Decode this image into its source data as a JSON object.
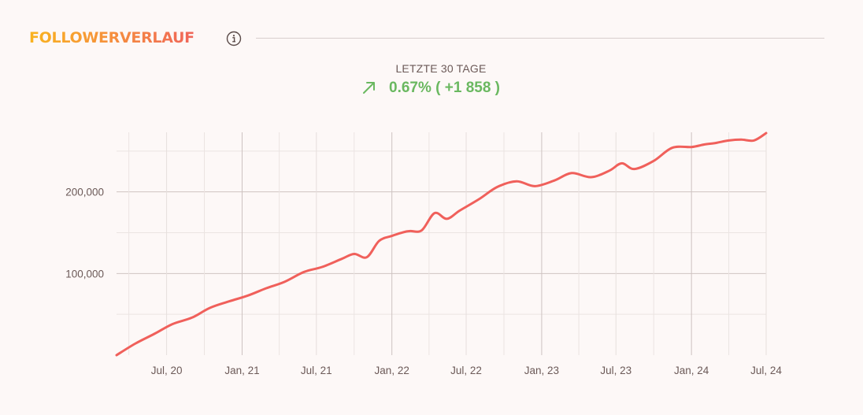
{
  "header": {
    "title": "FOLLOWERVERLAUF",
    "info_icon": "info-circle-icon"
  },
  "summary": {
    "label": "LETZTE 30 TAGE",
    "change_text": "0.67%  ( +1 858 )",
    "trend_icon": "arrow-up-right-icon",
    "accent_color": "#6ab860"
  },
  "chart_data": {
    "type": "line",
    "title": "",
    "xlabel": "",
    "ylabel": "",
    "x_ticks": [
      "Jul, 20",
      "Jan, 21",
      "Jul, 21",
      "Jan, 22",
      "Jul, 22",
      "Jan, 23",
      "Jul, 23",
      "Jan, 24",
      "Jul, 24"
    ],
    "y_ticks": [
      "100,000",
      "200,000"
    ],
    "y_tick_values": [
      100000,
      200000
    ],
    "xlim": [
      "2020-03-01",
      "2024-07-01"
    ],
    "ylim": [
      0,
      300000
    ],
    "grid": true,
    "line_color": "#f0605b",
    "series": [
      {
        "x": [
          "2020-03-01",
          "2020-04-15",
          "2020-06-01",
          "2020-07-15",
          "2020-09-01",
          "2020-10-15",
          "2020-12-01",
          "2021-01-15",
          "2021-03-01",
          "2021-04-15",
          "2021-06-01",
          "2021-07-15",
          "2021-09-01",
          "2021-10-01",
          "2021-11-01",
          "2021-12-01",
          "2022-01-01",
          "2022-02-01",
          "2022-02-15",
          "2022-03-15",
          "2022-04-15",
          "2022-05-15",
          "2022-06-15",
          "2022-08-01",
          "2022-09-15",
          "2022-11-01",
          "2022-12-15",
          "2023-02-01",
          "2023-03-15",
          "2023-05-01",
          "2023-06-15",
          "2023-07-15",
          "2023-08-15",
          "2023-10-01",
          "2023-11-15",
          "2024-01-01",
          "2024-02-01",
          "2024-03-01",
          "2024-04-01",
          "2024-05-01",
          "2024-06-01",
          "2024-07-01"
        ],
        "y": [
          0,
          14000,
          26000,
          38000,
          46000,
          58000,
          66000,
          73000,
          82000,
          90000,
          102000,
          108000,
          118000,
          124000,
          120000,
          140000,
          146000,
          151000,
          152000,
          153000,
          174000,
          167000,
          177000,
          191000,
          206000,
          213000,
          207000,
          214000,
          223000,
          218000,
          226000,
          235000,
          228000,
          238000,
          254000,
          255000,
          258000,
          260000,
          263000,
          264000,
          263000,
          272000
        ]
      }
    ]
  }
}
